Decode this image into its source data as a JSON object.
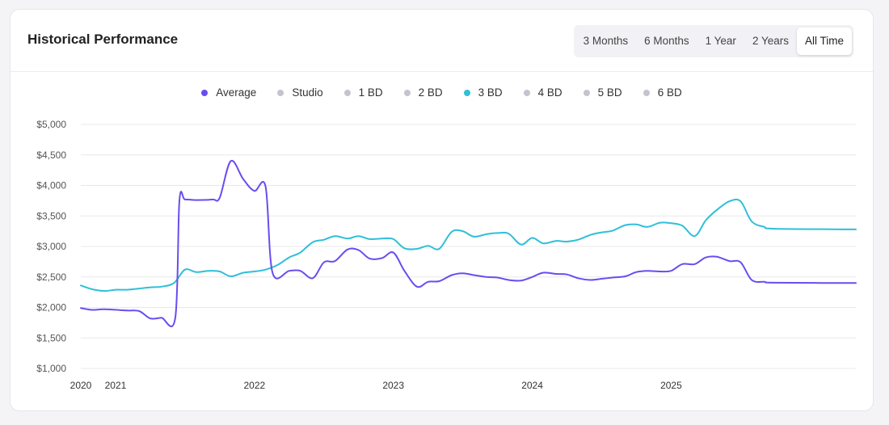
{
  "header": {
    "title": "Historical Performance",
    "ranges": [
      "3 Months",
      "6 Months",
      "1 Year",
      "2 Years",
      "All Time"
    ],
    "active_range": "All Time"
  },
  "colors": {
    "average": "#6a4cf0",
    "three_bd": "#2fbfd9",
    "inactive": "#c4c4d0",
    "grid": "#e8e8ec",
    "axis_text": "#555555"
  },
  "legend": [
    {
      "label": "Average",
      "color": "#6a4cf0",
      "active": true
    },
    {
      "label": "Studio",
      "color": "#c4c4d0",
      "active": false
    },
    {
      "label": "1 BD",
      "color": "#c4c4d0",
      "active": false
    },
    {
      "label": "2 BD",
      "color": "#c4c4d0",
      "active": false
    },
    {
      "label": "3 BD",
      "color": "#2fbfd9",
      "active": true
    },
    {
      "label": "4 BD",
      "color": "#c4c4d0",
      "active": false
    },
    {
      "label": "5 BD",
      "color": "#c4c4d0",
      "active": false
    },
    {
      "label": "6 BD",
      "color": "#c4c4d0",
      "active": false
    }
  ],
  "chart_data": {
    "type": "line",
    "title": "",
    "xlabel": "",
    "ylabel": "",
    "ylim": [
      1000,
      5000
    ],
    "yticks": [
      1000,
      1500,
      2000,
      2500,
      3000,
      3500,
      4000,
      4500,
      5000
    ],
    "ytick_labels": [
      "$1,000",
      "$1,500",
      "$2,000",
      "$2,500",
      "$3,000",
      "$3,500",
      "$4,000",
      "$4,500",
      "$5,000"
    ],
    "xlim": [
      2020.0,
      2025.58
    ],
    "xticks": [
      2020.0,
      2020.25,
      2021.25,
      2022.25,
      2023.25,
      2024.25
    ],
    "xtick_labels": [
      "2020",
      "2021",
      "2022",
      "2023",
      "2024",
      "2025"
    ],
    "grid": true,
    "legend_position": "top-center",
    "series": [
      {
        "name": "Average",
        "color": "#6a4cf0",
        "points": [
          [
            2020.0,
            1990
          ],
          [
            2020.08,
            1960
          ],
          [
            2020.17,
            1970
          ],
          [
            2020.33,
            1950
          ],
          [
            2020.42,
            1940
          ],
          [
            2020.5,
            1820
          ],
          [
            2020.58,
            1830
          ],
          [
            2020.68,
            1830
          ],
          [
            2020.71,
            3750
          ],
          [
            2020.75,
            3770
          ],
          [
            2020.83,
            3760
          ],
          [
            2020.95,
            3770
          ],
          [
            2021.0,
            3800
          ],
          [
            2021.08,
            4400
          ],
          [
            2021.17,
            4100
          ],
          [
            2021.25,
            3910
          ],
          [
            2021.33,
            3980
          ],
          [
            2021.38,
            2570
          ],
          [
            2021.5,
            2600
          ],
          [
            2021.58,
            2600
          ],
          [
            2021.67,
            2480
          ],
          [
            2021.75,
            2740
          ],
          [
            2021.83,
            2760
          ],
          [
            2021.92,
            2950
          ],
          [
            2022.0,
            2940
          ],
          [
            2022.08,
            2800
          ],
          [
            2022.17,
            2810
          ],
          [
            2022.25,
            2900
          ],
          [
            2022.33,
            2600
          ],
          [
            2022.42,
            2340
          ],
          [
            2022.5,
            2420
          ],
          [
            2022.58,
            2430
          ],
          [
            2022.67,
            2530
          ],
          [
            2022.75,
            2560
          ],
          [
            2022.83,
            2530
          ],
          [
            2022.92,
            2500
          ],
          [
            2023.0,
            2490
          ],
          [
            2023.08,
            2450
          ],
          [
            2023.17,
            2440
          ],
          [
            2023.25,
            2500
          ],
          [
            2023.33,
            2570
          ],
          [
            2023.42,
            2550
          ],
          [
            2023.5,
            2540
          ],
          [
            2023.58,
            2480
          ],
          [
            2023.67,
            2450
          ],
          [
            2023.75,
            2470
          ],
          [
            2023.83,
            2490
          ],
          [
            2023.92,
            2510
          ],
          [
            2024.0,
            2580
          ],
          [
            2024.08,
            2600
          ],
          [
            2024.17,
            2590
          ],
          [
            2024.25,
            2600
          ],
          [
            2024.33,
            2710
          ],
          [
            2024.42,
            2710
          ],
          [
            2024.5,
            2820
          ],
          [
            2024.58,
            2830
          ],
          [
            2024.67,
            2760
          ],
          [
            2024.75,
            2740
          ],
          [
            2024.83,
            2450
          ],
          [
            2024.92,
            2420
          ],
          [
            2025.0,
            2405
          ],
          [
            2025.58,
            2400
          ]
        ]
      },
      {
        "name": "3 BD",
        "color": "#2fbfd9",
        "points": [
          [
            2020.0,
            2360
          ],
          [
            2020.08,
            2300
          ],
          [
            2020.17,
            2270
          ],
          [
            2020.25,
            2290
          ],
          [
            2020.33,
            2290
          ],
          [
            2020.42,
            2310
          ],
          [
            2020.5,
            2330
          ],
          [
            2020.58,
            2340
          ],
          [
            2020.67,
            2400
          ],
          [
            2020.75,
            2620
          ],
          [
            2020.83,
            2580
          ],
          [
            2020.92,
            2600
          ],
          [
            2021.0,
            2590
          ],
          [
            2021.08,
            2510
          ],
          [
            2021.17,
            2570
          ],
          [
            2021.25,
            2590
          ],
          [
            2021.33,
            2620
          ],
          [
            2021.42,
            2700
          ],
          [
            2021.5,
            2820
          ],
          [
            2021.58,
            2900
          ],
          [
            2021.67,
            3070
          ],
          [
            2021.75,
            3110
          ],
          [
            2021.83,
            3170
          ],
          [
            2021.92,
            3130
          ],
          [
            2022.0,
            3170
          ],
          [
            2022.08,
            3120
          ],
          [
            2022.17,
            3130
          ],
          [
            2022.25,
            3120
          ],
          [
            2022.33,
            2970
          ],
          [
            2022.42,
            2960
          ],
          [
            2022.5,
            3010
          ],
          [
            2022.58,
            2960
          ],
          [
            2022.67,
            3240
          ],
          [
            2022.75,
            3250
          ],
          [
            2022.83,
            3160
          ],
          [
            2022.92,
            3200
          ],
          [
            2023.0,
            3220
          ],
          [
            2023.08,
            3210
          ],
          [
            2023.17,
            3030
          ],
          [
            2023.25,
            3140
          ],
          [
            2023.33,
            3050
          ],
          [
            2023.42,
            3090
          ],
          [
            2023.5,
            3080
          ],
          [
            2023.58,
            3110
          ],
          [
            2023.67,
            3190
          ],
          [
            2023.75,
            3230
          ],
          [
            2023.83,
            3260
          ],
          [
            2023.92,
            3350
          ],
          [
            2024.0,
            3360
          ],
          [
            2024.08,
            3320
          ],
          [
            2024.17,
            3390
          ],
          [
            2024.25,
            3380
          ],
          [
            2024.33,
            3340
          ],
          [
            2024.42,
            3170
          ],
          [
            2024.5,
            3430
          ],
          [
            2024.58,
            3600
          ],
          [
            2024.67,
            3740
          ],
          [
            2024.75,
            3740
          ],
          [
            2024.83,
            3410
          ],
          [
            2024.92,
            3320
          ],
          [
            2025.0,
            3290
          ],
          [
            2025.58,
            3280
          ]
        ]
      }
    ]
  }
}
